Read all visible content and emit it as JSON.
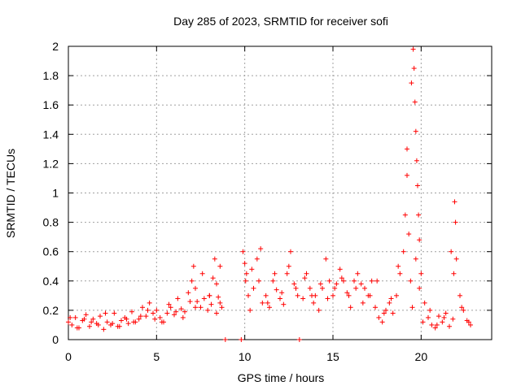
{
  "chart_data": {
    "type": "scatter",
    "title": "Day 285 of 2023, SRMTID for receiver sofi",
    "xlabel": "GPS time / hours",
    "ylabel": "SRMTID / TECUs",
    "xlim": [
      0,
      24
    ],
    "ylim": [
      0,
      2
    ],
    "xticks": [
      0,
      5,
      10,
      15,
      20
    ],
    "xtick_labels": [
      "0",
      "5",
      "10",
      "15",
      "20"
    ],
    "yticks": [
      0,
      0.2,
      0.4,
      0.6,
      0.8,
      1,
      1.2,
      1.4,
      1.6,
      1.8,
      2
    ],
    "ytick_labels": [
      "0",
      "0.2",
      "0.4",
      "0.6",
      "0.8",
      "1",
      "1.2",
      "1.4",
      "1.6",
      "1.8",
      "2"
    ],
    "grid": true,
    "marker": "+",
    "color": "#ff0000",
    "series": [
      {
        "name": "sofi",
        "x": [
          0.0,
          0.2,
          0.4,
          0.6,
          0.8,
          1.0,
          1.2,
          1.4,
          1.6,
          1.8,
          2.0,
          2.2,
          2.4,
          2.6,
          2.8,
          3.0,
          3.2,
          3.4,
          3.6,
          3.8,
          4.0,
          4.2,
          4.4,
          4.6,
          4.8,
          5.0,
          5.2,
          5.4,
          5.6,
          5.8,
          6.0,
          6.2,
          6.4,
          6.6,
          6.8,
          7.0,
          7.1,
          7.2,
          7.3,
          7.5,
          7.7,
          7.9,
          8.0,
          8.1,
          8.2,
          8.3,
          8.4,
          8.5,
          8.6,
          8.7,
          8.9,
          9.8,
          9.9,
          10.0,
          10.1,
          10.2,
          10.3,
          10.5,
          10.7,
          10.9,
          11.0,
          11.2,
          11.4,
          11.6,
          11.8,
          12.0,
          12.2,
          12.4,
          12.6,
          12.8,
          13.0,
          13.1,
          13.3,
          13.5,
          13.7,
          13.9,
          14.0,
          14.2,
          14.4,
          14.6,
          14.8,
          15.0,
          15.2,
          15.4,
          15.6,
          15.8,
          16.0,
          16.2,
          16.4,
          16.6,
          16.8,
          17.0,
          17.2,
          17.4,
          17.6,
          17.8,
          18.0,
          18.2,
          18.4,
          18.6,
          18.8,
          19.0,
          19.1,
          19.2,
          19.3,
          19.4,
          19.5,
          19.55,
          19.6,
          19.65,
          19.7,
          19.75,
          19.8,
          19.85,
          19.9,
          20.0,
          20.2,
          20.4,
          20.6,
          20.8,
          21.0,
          21.2,
          21.4,
          21.6,
          21.8,
          21.85,
          21.9,
          22.0,
          22.2,
          22.4,
          22.6,
          22.8,
          0.1,
          0.5,
          0.9,
          1.3,
          1.7,
          2.1,
          2.5,
          2.9,
          3.3,
          3.7,
          4.1,
          4.5,
          4.9,
          5.3,
          5.7,
          6.1,
          6.5,
          6.9,
          7.2,
          7.6,
          8.0,
          8.4,
          8.6,
          10.05,
          10.4,
          10.8,
          11.3,
          11.7,
          12.1,
          12.5,
          12.9,
          13.4,
          13.8,
          14.3,
          14.7,
          15.1,
          15.5,
          15.9,
          16.3,
          16.7,
          17.1,
          17.5,
          17.9,
          18.3,
          18.7,
          19.2,
          19.45,
          19.7,
          19.9,
          20.1,
          20.5,
          20.9,
          21.3,
          21.7,
          21.95,
          22.3,
          22.7
        ],
        "y": [
          0.12,
          0.1,
          0.15,
          0.08,
          0.13,
          0.17,
          0.09,
          0.14,
          0.11,
          0.16,
          0.07,
          0.12,
          0.1,
          0.18,
          0.09,
          0.13,
          0.15,
          0.11,
          0.19,
          0.12,
          0.14,
          0.22,
          0.16,
          0.25,
          0.18,
          0.2,
          0.15,
          0.12,
          0.18,
          0.22,
          0.17,
          0.28,
          0.21,
          0.19,
          0.32,
          0.4,
          0.5,
          0.35,
          0.26,
          0.22,
          0.28,
          0.2,
          0.3,
          0.24,
          0.42,
          0.55,
          0.38,
          0.29,
          0.25,
          0.22,
          0.0,
          0.0,
          0.6,
          0.52,
          0.45,
          0.3,
          0.2,
          0.35,
          0.55,
          0.62,
          0.25,
          0.3,
          0.22,
          0.4,
          0.34,
          0.28,
          0.24,
          0.45,
          0.6,
          0.38,
          0.3,
          0.0,
          0.28,
          0.45,
          0.35,
          0.25,
          0.3,
          0.2,
          0.35,
          0.55,
          0.4,
          0.3,
          0.38,
          0.48,
          0.4,
          0.32,
          0.22,
          0.4,
          0.45,
          0.38,
          0.35,
          0.3,
          0.4,
          0.22,
          0.15,
          0.12,
          0.2,
          0.25,
          0.18,
          0.3,
          0.45,
          0.6,
          0.85,
          1.12,
          0.72,
          0.4,
          0.22,
          1.98,
          1.85,
          1.62,
          1.42,
          1.22,
          1.05,
          0.85,
          0.68,
          0.45,
          0.25,
          0.15,
          0.1,
          0.08,
          0.16,
          0.12,
          0.18,
          0.09,
          0.14,
          0.45,
          0.94,
          0.55,
          0.3,
          0.2,
          0.13,
          0.1,
          0.15,
          0.08,
          0.14,
          0.12,
          0.1,
          0.18,
          0.11,
          0.09,
          0.14,
          0.12,
          0.16,
          0.2,
          0.14,
          0.12,
          0.24,
          0.19,
          0.15,
          0.26,
          0.22,
          0.45,
          0.3,
          0.18,
          0.5,
          0.4,
          0.48,
          0.4,
          0.25,
          0.45,
          0.32,
          0.5,
          0.35,
          0.42,
          0.3,
          0.38,
          0.28,
          0.35,
          0.42,
          0.3,
          0.35,
          0.25,
          0.3,
          0.4,
          0.18,
          0.28,
          0.5,
          1.3,
          1.75,
          0.55,
          0.35,
          0.12,
          0.2,
          0.1,
          0.15,
          0.6,
          0.8,
          0.22,
          0.12
        ]
      }
    ]
  }
}
